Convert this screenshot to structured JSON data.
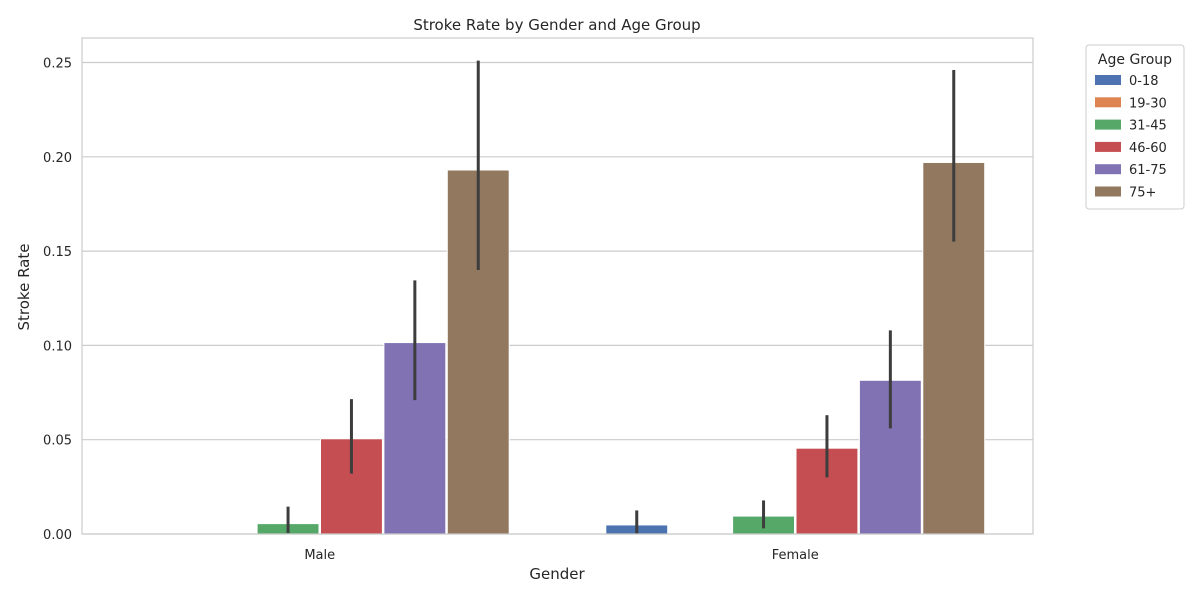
{
  "chart_data": {
    "type": "bar",
    "title": "Stroke Rate by Gender and Age Group",
    "xlabel": "Gender",
    "ylabel": "Stroke Rate",
    "categories": [
      "Male",
      "Female"
    ],
    "ylim": [
      0,
      0.263
    ],
    "yticks": [
      "0.00",
      "0.05",
      "0.10",
      "0.15",
      "0.20",
      "0.25"
    ],
    "ytick_values": [
      0,
      0.05,
      0.1,
      0.15,
      0.2,
      0.25
    ],
    "grid": true,
    "legend": {
      "title": "Age Group",
      "placement": "outside-top-right"
    },
    "series": [
      {
        "name": "0-18",
        "color": "#4c72b0",
        "values": [
          0.0,
          0.0048
        ],
        "ci": [
          [
            0,
            0
          ],
          [
            0.0,
            0.0125
          ]
        ]
      },
      {
        "name": "19-30",
        "color": "#dd8452",
        "values": [
          0.0,
          0.0
        ],
        "ci": [
          [
            0,
            0
          ],
          [
            0,
            0
          ]
        ]
      },
      {
        "name": "31-45",
        "color": "#55a868",
        "values": [
          0.0055,
          0.0095
        ],
        "ci": [
          [
            0.0005,
            0.0145
          ],
          [
            0.003,
            0.0178
          ]
        ]
      },
      {
        "name": "46-60",
        "color": "#c44e52",
        "values": [
          0.0505,
          0.0455
        ],
        "ci": [
          [
            0.032,
            0.0715
          ],
          [
            0.03,
            0.063
          ]
        ]
      },
      {
        "name": "61-75",
        "color": "#8172b3",
        "values": [
          0.1015,
          0.0815
        ],
        "ci": [
          [
            0.071,
            0.1345
          ],
          [
            0.056,
            0.108
          ]
        ]
      },
      {
        "name": "75+",
        "color": "#937860",
        "values": [
          0.193,
          0.197
        ],
        "ci": [
          [
            0.14,
            0.251
          ],
          [
            0.155,
            0.246
          ]
        ]
      }
    ]
  }
}
